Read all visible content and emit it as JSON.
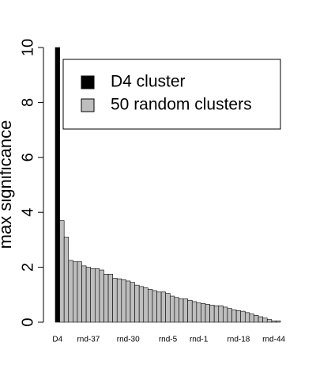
{
  "chart_data": {
    "type": "bar",
    "ylabel": "max significance",
    "ylim": [
      0,
      10
    ],
    "yticks": [
      0,
      2,
      4,
      6,
      8,
      10
    ],
    "legend": [
      {
        "name": "D4 cluster",
        "color": "#000000"
      },
      {
        "name": "50 random clusters",
        "color": "#bebebe"
      }
    ],
    "categories": [
      "D4",
      null,
      null,
      null,
      null,
      null,
      null,
      "rnd-37",
      null,
      null,
      null,
      null,
      null,
      null,
      null,
      null,
      "rnd-30",
      null,
      null,
      null,
      null,
      null,
      null,
      null,
      null,
      "rnd-5",
      null,
      null,
      null,
      null,
      null,
      null,
      "rnd-1",
      null,
      null,
      null,
      null,
      null,
      null,
      null,
      null,
      "rnd-18",
      null,
      null,
      null,
      null,
      null,
      null,
      null,
      "rnd-44",
      null
    ],
    "values": [
      10,
      3.7,
      3.1,
      2.25,
      2.2,
      2.2,
      2.05,
      2.0,
      1.95,
      1.95,
      1.9,
      1.75,
      1.75,
      1.6,
      1.58,
      1.55,
      1.5,
      1.45,
      1.35,
      1.3,
      1.25,
      1.2,
      1.15,
      1.1,
      1.1,
      1.05,
      0.95,
      0.9,
      0.85,
      0.85,
      0.8,
      0.75,
      0.7,
      0.68,
      0.65,
      0.62,
      0.6,
      0.6,
      0.55,
      0.5,
      0.45,
      0.42,
      0.4,
      0.35,
      0.3,
      0.25,
      0.2,
      0.15,
      0.1,
      0.05,
      0.05
    ]
  }
}
